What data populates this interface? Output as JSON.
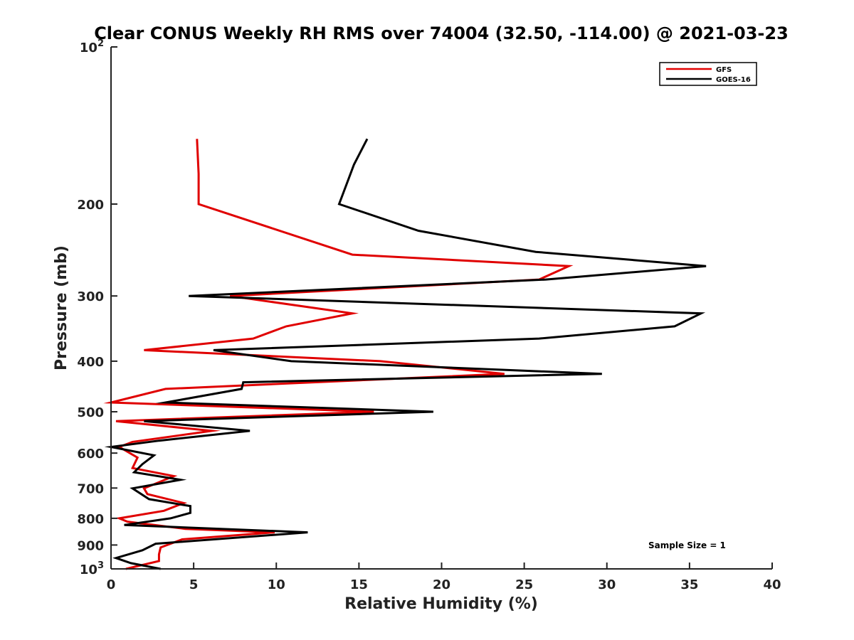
{
  "chart_data": {
    "type": "line",
    "title": "Clear CONUS Weekly RH RMS over 74004 (32.50, -114.00) @ 2021-03-23",
    "xlabel": "Relative Humidity (%)",
    "ylabel": "Pressure (mb)",
    "xlim": [
      0,
      40
    ],
    "ylim": [
      100,
      1000
    ],
    "y_scale": "log",
    "y_reversed": true,
    "grid": false,
    "legend_position": "top-right",
    "x_ticks": [
      0,
      5,
      10,
      15,
      20,
      25,
      30,
      35,
      40
    ],
    "y_ticks": [
      {
        "value": 100,
        "base": "10",
        "exp": "2"
      },
      {
        "value": 200,
        "label": "200"
      },
      {
        "value": 300,
        "label": "300"
      },
      {
        "value": 400,
        "label": "400"
      },
      {
        "value": 500,
        "label": "500"
      },
      {
        "value": 600,
        "label": "600"
      },
      {
        "value": 700,
        "label": "700"
      },
      {
        "value": 800,
        "label": "800"
      },
      {
        "value": 900,
        "label": "900"
      },
      {
        "value": 1000,
        "base": "10",
        "exp": "3"
      }
    ],
    "series": [
      {
        "name": "GFS",
        "color": "#e00000",
        "points": [
          [
            5.2,
            150
          ],
          [
            5.3,
            175
          ],
          [
            5.3,
            200
          ],
          [
            14.6,
            250
          ],
          [
            27.7,
            263
          ],
          [
            25.9,
            279
          ],
          [
            7.2,
            300
          ],
          [
            14.6,
            324
          ],
          [
            10.6,
            343
          ],
          [
            8.6,
            362
          ],
          [
            2.0,
            381
          ],
          [
            16.3,
            400
          ],
          [
            23.8,
            423
          ],
          [
            3.3,
            452
          ],
          [
            0.0,
            480
          ],
          [
            15.9,
            500
          ],
          [
            0.3,
            521
          ],
          [
            6.1,
            544
          ],
          [
            1.3,
            571
          ],
          [
            0.5,
            584
          ],
          [
            1.6,
            612
          ],
          [
            1.3,
            641
          ],
          [
            3.8,
            664
          ],
          [
            2.0,
            701
          ],
          [
            2.2,
            719
          ],
          [
            4.4,
            748
          ],
          [
            3.2,
            774
          ],
          [
            0.5,
            800
          ],
          [
            1.0,
            812
          ],
          [
            4.5,
            838
          ],
          [
            9.9,
            851
          ],
          [
            4.3,
            878
          ],
          [
            3.0,
            910
          ],
          [
            2.9,
            938
          ],
          [
            2.9,
            966
          ],
          [
            0.9,
            1000
          ]
        ]
      },
      {
        "name": "GOES-16",
        "color": "#000000",
        "points": [
          [
            15.5,
            150
          ],
          [
            14.7,
            168
          ],
          [
            13.8,
            200
          ],
          [
            18.6,
            225
          ],
          [
            25.7,
            247
          ],
          [
            36.0,
            263
          ],
          [
            26.3,
            279
          ],
          [
            4.7,
            300
          ],
          [
            35.7,
            324
          ],
          [
            34.1,
            343
          ],
          [
            25.9,
            362
          ],
          [
            6.2,
            381
          ],
          [
            10.9,
            400
          ],
          [
            29.7,
            423
          ],
          [
            8.0,
            439
          ],
          [
            7.9,
            452
          ],
          [
            3.3,
            480
          ],
          [
            19.5,
            500
          ],
          [
            2.0,
            521
          ],
          [
            8.4,
            544
          ],
          [
            2.9,
            568
          ],
          [
            0.0,
            584
          ],
          [
            2.6,
            606
          ],
          [
            1.9,
            630
          ],
          [
            1.4,
            653
          ],
          [
            4.2,
            675
          ],
          [
            1.3,
            701
          ],
          [
            2.3,
            735
          ],
          [
            4.8,
            758
          ],
          [
            4.8,
            781
          ],
          [
            3.6,
            800
          ],
          [
            0.8,
            824
          ],
          [
            11.9,
            851
          ],
          [
            2.7,
            895
          ],
          [
            1.9,
            921
          ],
          [
            0.3,
            953
          ],
          [
            1.2,
            975
          ],
          [
            3.0,
            1000
          ]
        ]
      }
    ],
    "annotation": "Sample Size = 1"
  }
}
